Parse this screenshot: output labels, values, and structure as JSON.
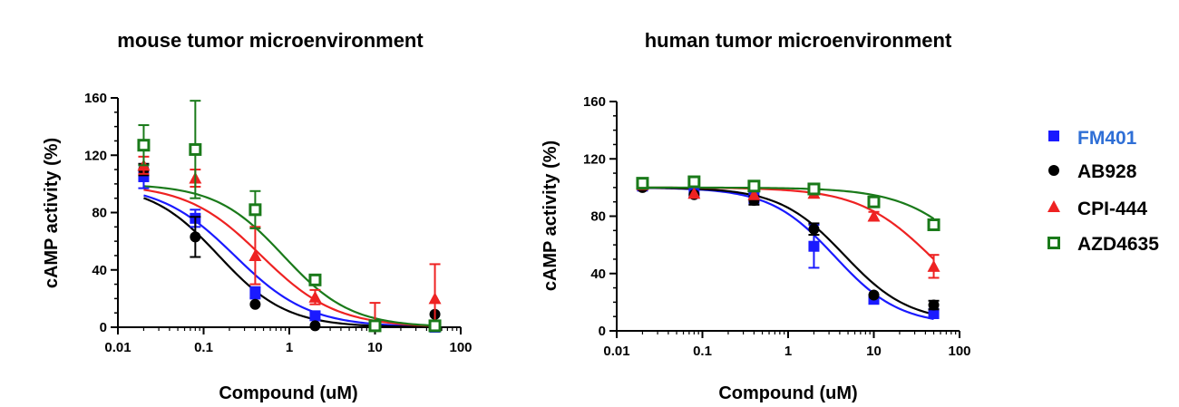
{
  "chart_data": [
    {
      "type": "scatter",
      "title": "mouse tumor microenvironment",
      "xlabel": "Compound (uM)",
      "ylabel": "cAMP activity (%)",
      "xscale": "log",
      "xlim": [
        0.01,
        100
      ],
      "ylim": [
        0,
        160
      ],
      "xticks": [
        "0.01",
        "0.1",
        "1",
        "10",
        "100"
      ],
      "yticks": [
        "0",
        "40",
        "80",
        "120",
        "160"
      ],
      "grid": false,
      "x": [
        0.02,
        0.08,
        0.4,
        2,
        10,
        50
      ],
      "series": [
        {
          "name": "FM401",
          "color": "#1a1aff",
          "marker": "square",
          "values": [
            105,
            76,
            24,
            8,
            1,
            0
          ],
          "err": [
            8,
            6,
            4,
            3,
            1,
            1
          ],
          "fit": {
            "top": 100,
            "bottom": 0,
            "ic50": 0.23,
            "hill": 1.0
          }
        },
        {
          "name": "AB928",
          "color": "#000000",
          "marker": "circle",
          "values": [
            110,
            63,
            16,
            1,
            1,
            9
          ],
          "err": [
            4,
            14,
            2,
            1,
            1,
            2
          ],
          "fit": {
            "top": 100,
            "bottom": 0,
            "ic50": 0.15,
            "hill": 1.1
          }
        },
        {
          "name": "CPI-444",
          "color": "#ee2222",
          "marker": "triangle",
          "values": [
            113,
            104,
            50,
            21,
            1,
            20
          ],
          "err": [
            6,
            6,
            20,
            5,
            16,
            24
          ],
          "fit": {
            "top": 100,
            "bottom": 0,
            "ic50": 0.47,
            "hill": 1.0
          }
        },
        {
          "name": "AZD4635",
          "color": "#1a7a1a",
          "marker": "open-square",
          "values": [
            127,
            124,
            82,
            33,
            1,
            1
          ],
          "err": [
            14,
            34,
            13,
            3,
            1,
            1
          ],
          "fit": {
            "top": 100,
            "bottom": 0,
            "ic50": 0.85,
            "hill": 1.1
          }
        }
      ]
    },
    {
      "type": "scatter",
      "title": "human tumor microenvironment",
      "xlabel": "Compound (uM)",
      "ylabel": "cAMP activity (%)",
      "xscale": "log",
      "xlim": [
        0.01,
        100
      ],
      "ylim": [
        0,
        160
      ],
      "xticks": [
        "0.01",
        "0.1",
        "1",
        "10",
        "100"
      ],
      "yticks": [
        "0",
        "40",
        "80",
        "120",
        "160"
      ],
      "grid": false,
      "x": [
        0.02,
        0.08,
        0.4,
        2,
        10,
        50
      ],
      "series": [
        {
          "name": "FM401",
          "color": "#1a1aff",
          "marker": "square",
          "values": [
            101,
            96,
            93,
            59,
            22,
            12
          ],
          "err": [
            2,
            2,
            4,
            15,
            2,
            2
          ],
          "fit": {
            "top": 100,
            "bottom": 4,
            "ic50": 3.5,
            "hill": 1.15
          }
        },
        {
          "name": "AB928",
          "color": "#000000",
          "marker": "circle",
          "values": [
            100,
            95,
            91,
            71,
            25,
            18
          ],
          "err": [
            2,
            2,
            3,
            4,
            2,
            3
          ],
          "fit": {
            "top": 100,
            "bottom": 6,
            "ic50": 4.5,
            "hill": 1.15
          }
        },
        {
          "name": "CPI-444",
          "color": "#ee2222",
          "marker": "triangle",
          "values": [
            102,
            96,
            95,
            96,
            80,
            45
          ],
          "err": [
            1,
            1,
            2,
            2,
            3,
            8
          ],
          "fit": {
            "top": 100,
            "bottom": 0,
            "ic50": 50,
            "hill": 1.0
          }
        },
        {
          "name": "AZD4635",
          "color": "#1a7a1a",
          "marker": "open-square",
          "values": [
            103,
            104,
            101,
            99,
            90,
            74
          ],
          "err": [
            1,
            1,
            1,
            1,
            1,
            1
          ],
          "fit": {
            "top": 100,
            "bottom": 0,
            "ic50": 180,
            "hill": 1.0
          }
        }
      ]
    }
  ],
  "legend": {
    "placement": "right",
    "items": [
      {
        "label": "FM401",
        "color": "#1a1aff",
        "text_color": "#2f6fd6",
        "marker": "square"
      },
      {
        "label": "AB928",
        "color": "#000000",
        "text_color": "#000000",
        "marker": "circle"
      },
      {
        "label": "CPI-444",
        "color": "#ee2222",
        "text_color": "#000000",
        "marker": "triangle"
      },
      {
        "label": "AZD4635",
        "color": "#1a7a1a",
        "text_color": "#000000",
        "marker": "open-square"
      }
    ]
  }
}
